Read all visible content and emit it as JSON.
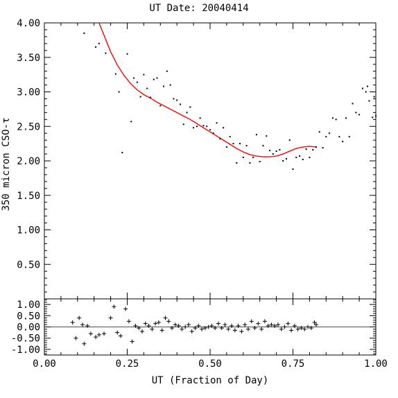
{
  "chart_data": [
    {
      "type": "scatter",
      "title": "UT Date: 20040414",
      "ylabel": "350 micron CSO-τ",
      "xlabel": "",
      "xlim": [
        0.0,
        1.0
      ],
      "ylim": [
        0.0,
        4.0
      ],
      "yticks": [
        "0.50",
        "1.00",
        "1.50",
        "2.00",
        "2.50",
        "3.00",
        "3.50",
        "4.00"
      ],
      "xticks": [],
      "series": [
        {
          "marker": "dot",
          "color": "#000000",
          "points": [
            [
              0.12,
              3.85
            ],
            [
              0.155,
              3.65
            ],
            [
              0.165,
              3.7
            ],
            [
              0.185,
              3.56
            ],
            [
              0.215,
              3.26
            ],
            [
              0.225,
              3.0
            ],
            [
              0.235,
              2.12
            ],
            [
              0.25,
              3.55
            ],
            [
              0.262,
              2.57
            ],
            [
              0.27,
              3.2
            ],
            [
              0.28,
              3.14
            ],
            [
              0.29,
              2.93
            ],
            [
              0.3,
              3.25
            ],
            [
              0.31,
              3.05
            ],
            [
              0.32,
              2.92
            ],
            [
              0.33,
              3.18
            ],
            [
              0.34,
              3.2
            ],
            [
              0.35,
              2.8
            ],
            [
              0.36,
              3.08
            ],
            [
              0.37,
              3.3
            ],
            [
              0.38,
              3.1
            ],
            [
              0.39,
              2.9
            ],
            [
              0.4,
              2.88
            ],
            [
              0.41,
              2.82
            ],
            [
              0.42,
              2.53
            ],
            [
              0.43,
              2.7
            ],
            [
              0.44,
              2.78
            ],
            [
              0.45,
              2.48
            ],
            [
              0.46,
              2.5
            ],
            [
              0.47,
              2.62
            ],
            [
              0.48,
              2.51
            ],
            [
              0.49,
              2.5
            ],
            [
              0.5,
              2.45
            ],
            [
              0.51,
              2.4
            ],
            [
              0.52,
              2.55
            ],
            [
              0.53,
              2.32
            ],
            [
              0.54,
              2.48
            ],
            [
              0.55,
              2.2
            ],
            [
              0.56,
              2.35
            ],
            [
              0.57,
              2.25
            ],
            [
              0.58,
              1.97
            ],
            [
              0.59,
              2.25
            ],
            [
              0.6,
              2.05
            ],
            [
              0.61,
              2.22
            ],
            [
              0.62,
              1.97
            ],
            [
              0.63,
              2.05
            ],
            [
              0.64,
              2.38
            ],
            [
              0.65,
              1.99
            ],
            [
              0.66,
              2.22
            ],
            [
              0.67,
              2.36
            ],
            [
              0.68,
              2.15
            ],
            [
              0.69,
              2.1
            ],
            [
              0.7,
              2.14
            ],
            [
              0.71,
              2.16
            ],
            [
              0.72,
              2.0
            ],
            [
              0.73,
              2.03
            ],
            [
              0.74,
              2.3
            ],
            [
              0.75,
              1.88
            ],
            [
              0.76,
              2.05
            ],
            [
              0.77,
              2.07
            ],
            [
              0.78,
              2.02
            ],
            [
              0.79,
              2.17
            ],
            [
              0.8,
              2.05
            ],
            [
              0.81,
              2.16
            ],
            [
              0.82,
              2.2
            ],
            [
              0.83,
              2.42
            ],
            [
              0.84,
              2.19
            ],
            [
              0.85,
              2.35
            ],
            [
              0.86,
              2.4
            ],
            [
              0.87,
              2.62
            ],
            [
              0.88,
              2.6
            ],
            [
              0.89,
              2.35
            ],
            [
              0.9,
              2.28
            ],
            [
              0.91,
              2.62
            ],
            [
              0.92,
              2.35
            ],
            [
              0.93,
              2.83
            ],
            [
              0.94,
              2.7
            ],
            [
              0.95,
              2.67
            ],
            [
              0.96,
              3.05
            ],
            [
              0.97,
              3.0
            ],
            [
              0.975,
              3.08
            ],
            [
              0.98,
              2.87
            ],
            [
              0.99,
              2.63
            ],
            [
              0.995,
              2.93
            ],
            [
              1.0,
              2.65
            ]
          ]
        },
        {
          "marker": "line",
          "color": "#ff0000",
          "points": [
            [
              0.165,
              4.0
            ],
            [
              0.18,
              3.82
            ],
            [
              0.2,
              3.58
            ],
            [
              0.22,
              3.39
            ],
            [
              0.24,
              3.24
            ],
            [
              0.26,
              3.12
            ],
            [
              0.28,
              3.03
            ],
            [
              0.3,
              2.96
            ],
            [
              0.32,
              2.91
            ],
            [
              0.34,
              2.85
            ],
            [
              0.36,
              2.8
            ],
            [
              0.38,
              2.75
            ],
            [
              0.4,
              2.7
            ],
            [
              0.42,
              2.65
            ],
            [
              0.44,
              2.6
            ],
            [
              0.46,
              2.54
            ],
            [
              0.48,
              2.48
            ],
            [
              0.5,
              2.42
            ],
            [
              0.52,
              2.36
            ],
            [
              0.54,
              2.3
            ],
            [
              0.56,
              2.24
            ],
            [
              0.58,
              2.18
            ],
            [
              0.6,
              2.13
            ],
            [
              0.62,
              2.09
            ],
            [
              0.64,
              2.07
            ],
            [
              0.66,
              2.06
            ],
            [
              0.68,
              2.06
            ],
            [
              0.7,
              2.07
            ],
            [
              0.72,
              2.1
            ],
            [
              0.74,
              2.14
            ],
            [
              0.76,
              2.18
            ],
            [
              0.78,
              2.2
            ],
            [
              0.8,
              2.21
            ],
            [
              0.82,
              2.2
            ]
          ]
        }
      ]
    },
    {
      "type": "scatter",
      "title": "",
      "xlabel": "UT (Fraction of Day)",
      "ylabel": "",
      "xlim": [
        0.0,
        1.0
      ],
      "ylim": [
        -1.25,
        1.25
      ],
      "xticks": [
        "0.00",
        "0.25",
        "0.50",
        "0.75",
        "1.00"
      ],
      "yticks": [
        "1.00",
        "0.50",
        "0.00",
        "-0.50",
        "-1.00"
      ],
      "zero_line_color": "#ff0000",
      "series": [
        {
          "marker": "plus",
          "color": "#000000",
          "points": [
            [
              0.085,
              0.2
            ],
            [
              0.095,
              -0.5
            ],
            [
              0.105,
              0.4
            ],
            [
              0.115,
              0.1
            ],
            [
              0.12,
              -0.75
            ],
            [
              0.13,
              0.05
            ],
            [
              0.14,
              -0.3
            ],
            [
              0.155,
              -0.45
            ],
            [
              0.165,
              -0.35
            ],
            [
              0.18,
              -0.3
            ],
            [
              0.2,
              0.4
            ],
            [
              0.21,
              0.9
            ],
            [
              0.22,
              -0.25
            ],
            [
              0.23,
              -0.4
            ],
            [
              0.245,
              0.8
            ],
            [
              0.255,
              0.25
            ],
            [
              0.265,
              -0.65
            ],
            [
              0.275,
              0.05
            ],
            [
              0.285,
              -0.05
            ],
            [
              0.295,
              -0.2
            ],
            [
              0.305,
              0.15
            ],
            [
              0.315,
              0.05
            ],
            [
              0.325,
              -0.1
            ],
            [
              0.335,
              0.15
            ],
            [
              0.345,
              0.2
            ],
            [
              0.355,
              -0.15
            ],
            [
              0.365,
              0.4
            ],
            [
              0.375,
              0.25
            ],
            [
              0.385,
              -0.05
            ],
            [
              0.395,
              0.1
            ],
            [
              0.405,
              0.05
            ],
            [
              0.415,
              -0.1
            ],
            [
              0.425,
              0.0
            ],
            [
              0.435,
              0.1
            ],
            [
              0.445,
              -0.2
            ],
            [
              0.455,
              -0.05
            ],
            [
              0.465,
              0.05
            ],
            [
              0.475,
              -0.1
            ],
            [
              0.485,
              -0.05
            ],
            [
              0.495,
              0.0
            ],
            [
              0.505,
              0.05
            ],
            [
              0.515,
              -0.05
            ],
            [
              0.525,
              0.15
            ],
            [
              0.535,
              -0.05
            ],
            [
              0.545,
              0.1
            ],
            [
              0.555,
              -0.1
            ],
            [
              0.565,
              0.05
            ],
            [
              0.575,
              -0.15
            ],
            [
              0.585,
              0.05
            ],
            [
              0.595,
              -0.2
            ],
            [
              0.605,
              0.1
            ],
            [
              0.615,
              -0.1
            ],
            [
              0.625,
              0.25
            ],
            [
              0.635,
              -0.05
            ],
            [
              0.645,
              0.15
            ],
            [
              0.655,
              -0.1
            ],
            [
              0.665,
              0.25
            ],
            [
              0.675,
              0.05
            ],
            [
              0.685,
              0.1
            ],
            [
              0.695,
              0.05
            ],
            [
              0.705,
              0.1
            ],
            [
              0.715,
              -0.1
            ],
            [
              0.725,
              0.0
            ],
            [
              0.735,
              0.15
            ],
            [
              0.745,
              -0.15
            ],
            [
              0.755,
              0.05
            ],
            [
              0.765,
              -0.1
            ],
            [
              0.775,
              -0.05
            ],
            [
              0.785,
              -0.1
            ],
            [
              0.795,
              0.0
            ],
            [
              0.805,
              -0.05
            ],
            [
              0.815,
              0.2
            ],
            [
              0.82,
              0.1
            ]
          ]
        }
      ]
    }
  ]
}
